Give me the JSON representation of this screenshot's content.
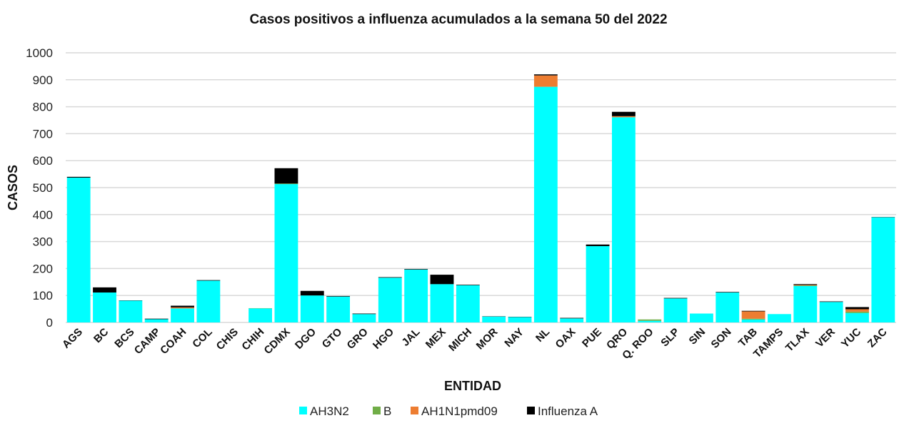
{
  "chart_data": {
    "type": "bar",
    "stacked": true,
    "title": "Casos positivos a influenza acumulados a la semana  50 del 2022",
    "xlabel": "ENTIDAD",
    "ylabel": "CASOS",
    "ylim": [
      0,
      1000
    ],
    "yticks": [
      0,
      100,
      200,
      300,
      400,
      500,
      600,
      700,
      800,
      900,
      1000
    ],
    "grid": true,
    "legend": "bottom",
    "categories": [
      "AGS",
      "BC",
      "BCS",
      "CAMP",
      "COAH",
      "COL",
      "CHIS",
      "CHIH",
      "CDMX",
      "DGO",
      "GTO",
      "GRO",
      "HGO",
      "JAL",
      "MEX",
      "MICH",
      "MOR",
      "NAY",
      "NL",
      "OAX",
      "PUE",
      "QRO",
      "Q. ROO",
      "SLP",
      "SIN",
      "SON",
      "TAB",
      "TAMPS",
      "TLAX",
      "VER",
      "YUC",
      "ZAC"
    ],
    "series": [
      {
        "name": "AH3N2",
        "color": "#00FFFF",
        "values": [
          537,
          111,
          81,
          12,
          52,
          155,
          0,
          52,
          513,
          100,
          96,
          31,
          166,
          196,
          142,
          138,
          22,
          20,
          874,
          15,
          283,
          761,
          6,
          89,
          33,
          111,
          11,
          31,
          135,
          76,
          35,
          390
        ]
      },
      {
        "name": "B",
        "color": "#70AD47",
        "values": [
          0,
          0,
          0,
          0,
          0,
          0,
          0,
          1,
          2,
          0,
          0,
          0,
          0,
          0,
          0,
          0,
          0,
          0,
          0,
          0,
          0,
          0,
          5,
          0,
          0,
          0,
          3,
          0,
          2,
          0,
          5,
          0
        ]
      },
      {
        "name": "AH1N1pmd09",
        "color": "#ED7D31",
        "values": [
          0,
          0,
          0,
          0,
          4,
          0,
          0,
          0,
          0,
          0,
          0,
          0,
          0,
          0,
          0,
          0,
          0,
          0,
          42,
          0,
          0,
          4,
          0,
          0,
          0,
          0,
          27,
          0,
          2,
          0,
          9,
          0
        ]
      },
      {
        "name": "Influenza A",
        "color": "#000000",
        "values": [
          3,
          19,
          1,
          2,
          6,
          2,
          0,
          0,
          57,
          17,
          2,
          2,
          2,
          2,
          35,
          2,
          1,
          1,
          4,
          2,
          6,
          16,
          0,
          2,
          0,
          2,
          2,
          0,
          3,
          2,
          8,
          1
        ]
      }
    ]
  }
}
